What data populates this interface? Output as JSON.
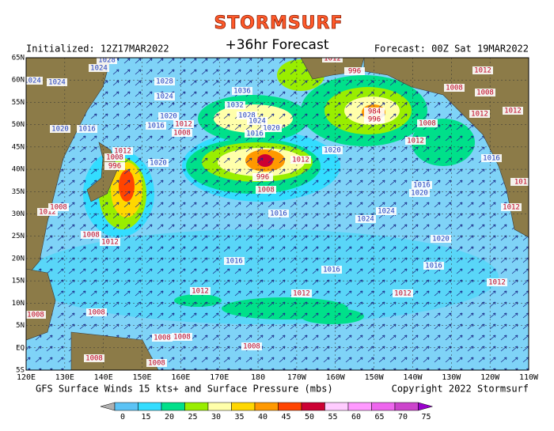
{
  "header": {
    "title": "STORMSURF",
    "subtitle": "+36hr Forecast",
    "initialized": "Initialized: 12Z17MAR2022",
    "forecast": "Forecast: 00Z Sat 19MAR2022"
  },
  "map": {
    "lat_labels": [
      "65N",
      "60N",
      "55N",
      "50N",
      "45N",
      "40N",
      "35N",
      "30N",
      "25N",
      "20N",
      "15N",
      "10N",
      "5N",
      "EQ",
      "5S"
    ],
    "lon_labels": [
      "120E",
      "130E",
      "140E",
      "150E",
      "160E",
      "170E",
      "180",
      "170W",
      "160W",
      "150W",
      "140W",
      "130W",
      "120W",
      "110W"
    ],
    "isobar_labels": [
      "1024",
      "1024",
      "1024",
      "1028",
      "1028",
      "1024",
      "1020",
      "1016",
      "1012",
      "1008",
      "1016",
      "1020",
      "1012",
      "1008",
      "996",
      "1020",
      "1012",
      "1008",
      "1008",
      "1012",
      "1036",
      "1032",
      "1028",
      "1024",
      "1020",
      "1016",
      "996",
      "1012",
      "1008",
      "1016",
      "1020",
      "984",
      "996",
      "996",
      "1012",
      "1012",
      "1008",
      "1008",
      "1008",
      "1012",
      "1012",
      "1012",
      "1016",
      "1016",
      "1020",
      "101",
      "1012",
      "1024",
      "1024",
      "1020",
      "1016",
      "1016",
      "1016",
      "1012",
      "1012",
      "1012",
      "1012",
      "1008",
      "1008",
      "1008",
      "1008",
      "1008",
      "1008",
      "1008"
    ]
  },
  "footer": {
    "caption": "GFS Surface Winds 15 kts+ and Surface Pressure (mbs)",
    "copyright": "Copyright 2022 Stormsurf"
  },
  "colorbar": {
    "ticks": [
      0,
      15,
      20,
      25,
      30,
      35,
      40,
      45,
      50,
      55,
      60,
      65,
      70,
      75
    ],
    "colors": [
      "#b0b0b0",
      "#5cc3f5",
      "#33ddff",
      "#00e08a",
      "#99ee00",
      "#ffffaa",
      "#ffd700",
      "#ff9900",
      "#ff4400",
      "#cc0033",
      "#ffccff",
      "#ff99ff",
      "#ee66ee",
      "#cc44cc",
      "#9900cc"
    ]
  }
}
